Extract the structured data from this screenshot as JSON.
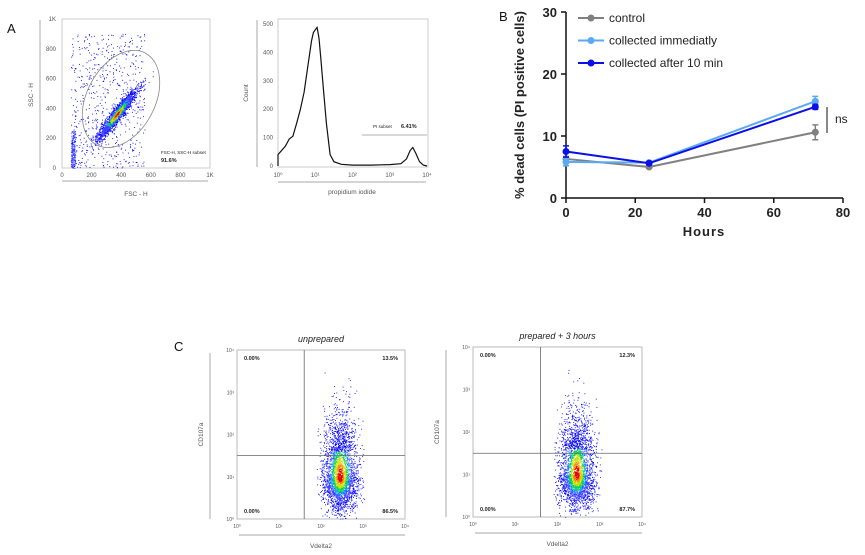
{
  "panels": {
    "a": "A",
    "b": "B",
    "c": "C"
  },
  "panel_a": {
    "scatter": {
      "xlabel": "FSC - H",
      "ylabel": "SSC - H",
      "xticks": [
        "0",
        "200",
        "400",
        "600",
        "800",
        "1K"
      ],
      "yticks": [
        "0",
        "200",
        "400",
        "600",
        "800",
        "1K"
      ],
      "gate_label": "FSC-H, SSC-H subset",
      "gate_percent": "91.6%"
    },
    "histogram": {
      "xlabel": "propidium iodide",
      "ylabel": "Count",
      "xticks": [
        "10⁰",
        "10¹",
        "10²",
        "10³",
        "10⁴"
      ],
      "yticks": [
        "0",
        "100",
        "200",
        "300",
        "400",
        "500"
      ],
      "gate_label": "PI subset",
      "gate_percent": "6.41%",
      "curve_log10x": [
        0,
        0.1,
        0.2,
        0.3,
        0.4,
        0.5,
        0.6,
        0.7,
        0.8,
        0.9,
        0.95,
        1.0,
        1.05,
        1.1,
        1.15,
        1.2,
        1.3,
        1.4,
        1.5,
        1.7,
        2.0,
        2.5,
        3.0,
        3.3,
        3.45,
        3.55,
        3.62,
        3.7,
        3.8,
        3.9,
        4.0
      ],
      "curve_count": [
        40,
        55,
        70,
        95,
        105,
        150,
        200,
        260,
        350,
        440,
        470,
        480,
        488,
        450,
        380,
        300,
        150,
        40,
        15,
        6,
        3,
        3,
        5,
        8,
        25,
        55,
        65,
        45,
        15,
        3,
        0
      ]
    }
  },
  "chart_data": {
    "type": "line",
    "xlabel": "Hours",
    "ylabel": "% dead cells (PI positive cells)",
    "xlim": [
      0,
      80
    ],
    "ylim": [
      0,
      30
    ],
    "xticks": [
      "0",
      "20",
      "40",
      "60",
      "80"
    ],
    "yticks": [
      "0",
      "10",
      "20",
      "30"
    ],
    "x": [
      0,
      24,
      72
    ],
    "legend_position": "top-left",
    "series": [
      {
        "name": "control",
        "color": "#808080",
        "values": [
          6.3,
          5.0,
          10.6
        ],
        "errors": [
          0.4,
          0.2,
          1.2
        ]
      },
      {
        "name": "collected immediatly",
        "color": "#5aa9f5",
        "values": [
          5.8,
          5.7,
          15.6
        ],
        "errors": [
          0.6,
          0.2,
          0.8
        ]
      },
      {
        "name": "collected after 10 min",
        "color": "#0a10e6",
        "values": [
          7.5,
          5.6,
          14.7
        ],
        "errors": [
          0.9,
          0.2,
          0.4
        ]
      }
    ],
    "annotation": "ns"
  },
  "panel_c": {
    "xlabel": "Vdelta2",
    "ylabel": "CD107a",
    "ticks": [
      "10⁰",
      "10¹",
      "10²",
      "10³",
      "10⁴"
    ],
    "plots": [
      {
        "title": "unprepared",
        "ul": "0.00%",
        "ur": "13.5%",
        "ll": "0.00%",
        "lr": "86.5%"
      },
      {
        "title": "prepared + 3 hours",
        "ul": "0.00%",
        "ur": "12.3%",
        "ll": "0.00%",
        "lr": "87.7%"
      }
    ]
  }
}
